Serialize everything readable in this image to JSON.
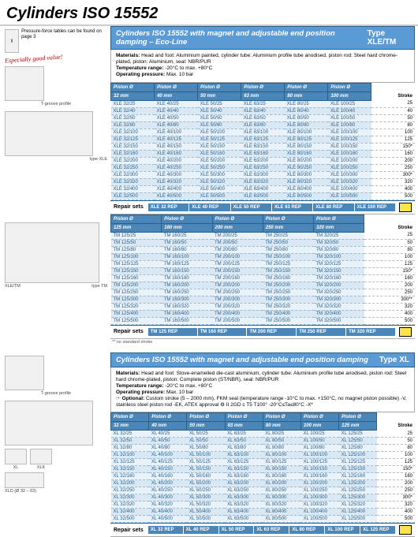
{
  "page": {
    "title": "Cylinders ISO 15552"
  },
  "left": {
    "note": "Pressure-force tables can be found on page 3",
    "especially": "Especially good value!",
    "captions": {
      "tgroove": "T-groove profile",
      "type_xle": "type XLE",
      "xle_tm": "XLE/TM",
      "type_tm": "type TM",
      "xl": "XL",
      "xlk": "XLK",
      "xld": "XLD (Ø 32 – 63)"
    }
  },
  "block1": {
    "title": "Cylinders ISO 15552 with magnet and adjustable end position damping – Eco-Line",
    "type": "Type XLE/TM",
    "materials": "Head and foot: Aluminium painted, cylinder tube: Aluminium profile tube anodised, piston rod: Steel hard chrome-plated, piston: Aluminium, seal: NBR/PUR",
    "temp": "-20°C to max. +80°C",
    "press": "Max. 10 bar",
    "cols": [
      "32 mm",
      "40 mm",
      "50 mm",
      "63 mm",
      "80 mm",
      "100 mm"
    ],
    "stroke_header": "Stroke",
    "strokes": [
      "25",
      "40",
      "50",
      "80",
      "100",
      "125",
      "150*",
      "160",
      "200",
      "250",
      "300*",
      "320",
      "400",
      "500"
    ],
    "grid": [
      [
        "XLE 32/25",
        "XLE 40/25",
        "XLE 50/25",
        "XLE 63/25",
        "XLE 80/25",
        "XLE 100/25"
      ],
      [
        "XLE 32/40",
        "XLE 40/40",
        "XLE 50/40",
        "XLE 63/40",
        "XLE 80/40",
        "XLE 100/40"
      ],
      [
        "XLE 32/50",
        "XLE 40/50",
        "XLE 50/50",
        "XLE 63/50",
        "XLE 80/50",
        "XLE 100/50"
      ],
      [
        "XLE 32/80",
        "XLE 40/80",
        "XLE 50/80",
        "XLE 63/80",
        "XLE 80/80",
        "XLE 100/80"
      ],
      [
        "XLE 32/100",
        "XLE 40/100",
        "XLE 50/100",
        "XLE 63/100",
        "XLE 80/100",
        "XLE 100/100"
      ],
      [
        "XLE 32/125",
        "XLE 40/125",
        "XLE 50/125",
        "XLE 63/125",
        "XLE 80/125",
        "XLE 100/125"
      ],
      [
        "XLE 32/150",
        "XLE 40/150",
        "XLE 50/150",
        "XLE 63/150",
        "XLE 80/150",
        "XLE 100/150"
      ],
      [
        "XLE 32/160",
        "XLE 40/160",
        "XLE 50/160",
        "XLE 63/160",
        "XLE 80/160",
        "XLE 100/160"
      ],
      [
        "XLE 32/200",
        "XLE 40/200",
        "XLE 50/200",
        "XLE 63/200",
        "XLE 80/200",
        "XLE 100/200"
      ],
      [
        "XLE 32/250",
        "XLE 40/250",
        "XLE 50/250",
        "XLE 63/250",
        "XLE 80/250",
        "XLE 100/250"
      ],
      [
        "XLE 32/300",
        "XLE 40/300",
        "XLE 50/300",
        "XLE 63/300",
        "XLE 80/300",
        "XLE 100/300"
      ],
      [
        "XLE 32/320",
        "XLE 40/320",
        "XLE 50/320",
        "XLE 63/320",
        "XLE 80/320",
        "XLE 100/320"
      ],
      [
        "XLE 32/400",
        "XLE 40/400",
        "XLE 50/400",
        "XLE 63/400",
        "XLE 80/400",
        "XLE 100/400"
      ],
      [
        "XLE 32/500",
        "XLE 40/500",
        "XLE 50/500",
        "XLE 63/500",
        "XLE 80/500",
        "XLE 100/500"
      ]
    ],
    "repair_label": "Repair sets",
    "repairs": [
      "XLE 32 REP",
      "XLE 40 REP",
      "XLE 50 REP",
      "XLE 63 REP",
      "XLE 80 REP",
      "XLE 100 REP"
    ],
    "tm_cols": [
      "125 mm",
      "160 mm",
      "200 mm",
      "250 mm",
      "320 mm"
    ],
    "tm_strokes": [
      "25",
      "50",
      "80",
      "100",
      "125",
      "150*",
      "160",
      "200",
      "250",
      "300**",
      "320",
      "400",
      "500"
    ],
    "tm_grid": [
      [
        "TM 125/25",
        "TM 160/25",
        "TM 200/25",
        "TM 250/25",
        "TM 320/25"
      ],
      [
        "TM 125/50",
        "TM 160/50",
        "TM 200/50",
        "TM 250/50",
        "TM 320/50"
      ],
      [
        "TM 125/80",
        "TM 160/80",
        "TM 200/80",
        "TM 250/80",
        "TM 320/80"
      ],
      [
        "TM 125/100",
        "TM 160/100",
        "TM 200/100",
        "TM 250/100",
        "TM 320/100"
      ],
      [
        "TM 125/125",
        "TM 160/125",
        "TM 200/125",
        "TM 250/125",
        "TM 320/125"
      ],
      [
        "TM 125/150",
        "TM 160/150",
        "TM 200/150",
        "TM 250/150",
        "TM 320/150"
      ],
      [
        "TM 125/160",
        "TM 160/160",
        "TM 200/160",
        "TM 250/160",
        "TM 320/160"
      ],
      [
        "TM 125/200",
        "TM 160/200",
        "TM 200/200",
        "TM 250/200",
        "TM 320/200"
      ],
      [
        "TM 125/250",
        "TM 160/250",
        "TM 200/250",
        "TM 250/250",
        "TM 320/250"
      ],
      [
        "TM 125/300",
        "TM 160/300",
        "TM 200/300",
        "TM 250/300",
        "TM 320/300"
      ],
      [
        "TM 125/320",
        "TM 160/320",
        "TM 200/320",
        "TM 250/320",
        "TM 320/320"
      ],
      [
        "TM 125/400",
        "TM 160/400",
        "TM 200/400",
        "TM 250/400",
        "TM 320/400"
      ],
      [
        "TM 125/500",
        "TM 160/500",
        "TM 200/500",
        "TM 250/500",
        "TM 320/500"
      ]
    ],
    "tm_repairs": [
      "TM 125 REP",
      "TM 160 REP",
      "TM 200 REP",
      "TM 250 REP",
      "TM 320 REP"
    ],
    "footnote": "** no standard stroke"
  },
  "block2": {
    "title": "Cylinders ISO 15552 with magnet and adjustable end position damping",
    "type": "Type XL",
    "materials": "Head and foot: Stove-enamelled die-cast aluminium, cylinder tube: Aluminium profile tube anodised, piston rod: Steel hard chrome-plated, piston: Complete piston (ST/NBR), seal: NBR/PUR",
    "temp": "-20°C to max. +80°C",
    "press": "Max. 10 bar",
    "optional": "Custom stroke (5 – 2000 mm), FKM seal (temperature range -10°C to max. +150°C, no magnet piston possible) -V, stainless steel piston rod -EK, ATEX approval ⚙ II 2GD c T5 T100° -20°C≤Ta≤80°C -X*",
    "cols": [
      "32 mm",
      "40 mm",
      "50 mm",
      "63 mm",
      "80 mm",
      "100 mm",
      "125 mm"
    ],
    "stroke_header": "Stroke",
    "strokes": [
      "25",
      "50",
      "80",
      "100",
      "125",
      "150*",
      "160",
      "200",
      "250",
      "300*",
      "320",
      "400",
      "500"
    ],
    "grid": [
      [
        "XL 32/25",
        "XL 40/25",
        "XL 50/25",
        "XL 63/25",
        "XL 80/25",
        "XL 100/25",
        "XL 125/25"
      ],
      [
        "XL 32/50",
        "XL 40/50",
        "XL 50/50",
        "XL 63/50",
        "XL 80/50",
        "XL 100/50",
        "XL 125/50"
      ],
      [
        "XL 32/80",
        "XL 40/80",
        "XL 50/80",
        "XL 63/80",
        "XL 80/80",
        "XL 100/80",
        "XL 125/80"
      ],
      [
        "XL 32/100",
        "XL 40/100",
        "XL 50/100",
        "XL 63/100",
        "XL 80/100",
        "XL 100/100",
        "XL 125/100"
      ],
      [
        "XL 32/125",
        "XL 40/125",
        "XL 50/125",
        "XL 63/125",
        "XL 80/125",
        "XL 100/125",
        "XL 125/125"
      ],
      [
        "XL 32/150",
        "XL 40/150",
        "XL 50/150",
        "XL 63/150",
        "XL 80/150",
        "XL 100/150",
        "XL 125/150"
      ],
      [
        "XL 32/160",
        "XL 40/160",
        "XL 50/160",
        "XL 63/160",
        "XL 80/160",
        "XL 100/160",
        "XL 125/160"
      ],
      [
        "XL 32/200",
        "XL 40/200",
        "XL 50/200",
        "XL 63/200",
        "XL 80/200",
        "XL 100/200",
        "XL 125/200"
      ],
      [
        "XL 32/250",
        "XL 40/250",
        "XL 50/250",
        "XL 63/250",
        "XL 80/250",
        "XL 100/250",
        "XL 125/250"
      ],
      [
        "XL 32/300",
        "XL 40/300",
        "XL 50/300",
        "XL 63/300",
        "XL 80/300",
        "XL 100/300",
        "XL 125/300"
      ],
      [
        "XL 32/320",
        "XL 40/320",
        "XL 50/320",
        "XL 63/320",
        "XL 80/320",
        "XL 100/320",
        "XL 125/320"
      ],
      [
        "XL 32/400",
        "XL 40/400",
        "XL 50/400",
        "XL 63/400",
        "XL 80/400",
        "XL 100/400",
        "XL 125/400"
      ],
      [
        "XL 32/500",
        "XL 40/500",
        "XL 50/500",
        "XL 63/500",
        "XL 80/500",
        "XL 100/500",
        "XL 125/500"
      ]
    ],
    "repair_label": "Repair sets",
    "repairs": [
      "XL 32 REP",
      "XL 40 REP",
      "XL 50 REP",
      "XL 63 REP",
      "XL 80 REP",
      "XL 100 REP",
      "XL 125 REP"
    ]
  },
  "labels": {
    "piston": "Piston Ø",
    "materials": "Materials:",
    "temp": "Temperature range:",
    "press": "Operating pressure:",
    "optional": "Optional:"
  }
}
